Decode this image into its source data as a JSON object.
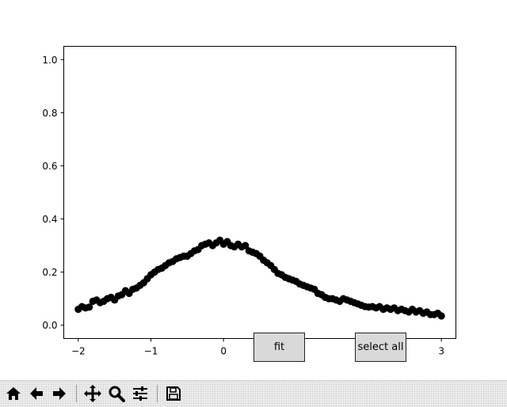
{
  "chart_data": {
    "type": "scatter",
    "title": "",
    "xlabel": "",
    "ylabel": "",
    "xlim": [
      -2.2,
      3.2
    ],
    "ylim": [
      -0.05,
      1.05
    ],
    "xticks": [
      "−2",
      "−1",
      "0",
      "1",
      "2",
      "3"
    ],
    "xtick_values": [
      -2,
      -1,
      0,
      1,
      2,
      3
    ],
    "yticks": [
      "0.0",
      "0.2",
      "0.4",
      "0.6",
      "0.8",
      "1.0"
    ],
    "ytick_values": [
      0.0,
      0.2,
      0.4,
      0.6,
      0.8,
      1.0
    ],
    "marker_color": "#000000",
    "grid": false,
    "x": [
      -2.0,
      -1.95,
      -1.9,
      -1.85,
      -1.8,
      -1.75,
      -1.7,
      -1.65,
      -1.6,
      -1.55,
      -1.5,
      -1.45,
      -1.4,
      -1.35,
      -1.3,
      -1.25,
      -1.2,
      -1.15,
      -1.1,
      -1.05,
      -1.0,
      -0.95,
      -0.9,
      -0.85,
      -0.8,
      -0.75,
      -0.7,
      -0.65,
      -0.6,
      -0.55,
      -0.5,
      -0.45,
      -0.4,
      -0.35,
      -0.3,
      -0.25,
      -0.2,
      -0.15,
      -0.1,
      -0.05,
      0.0,
      0.05,
      0.1,
      0.15,
      0.2,
      0.25,
      0.3,
      0.35,
      0.4,
      0.45,
      0.5,
      0.55,
      0.6,
      0.65,
      0.7,
      0.75,
      0.8,
      0.85,
      0.9,
      0.95,
      1.0,
      1.05,
      1.1,
      1.15,
      1.2,
      1.25,
      1.3,
      1.35,
      1.4,
      1.45,
      1.5,
      1.55,
      1.6,
      1.65,
      1.7,
      1.75,
      1.8,
      1.85,
      1.9,
      1.95,
      2.0,
      2.05,
      2.1,
      2.15,
      2.2,
      2.25,
      2.3,
      2.35,
      2.4,
      2.45,
      2.5,
      2.55,
      2.6,
      2.65,
      2.7,
      2.75,
      2.8,
      2.85,
      2.9,
      2.95,
      3.0
    ],
    "y": [
      0.06,
      0.07,
      0.065,
      0.068,
      0.09,
      0.095,
      0.085,
      0.09,
      0.1,
      0.105,
      0.095,
      0.11,
      0.115,
      0.13,
      0.12,
      0.135,
      0.14,
      0.15,
      0.16,
      0.175,
      0.19,
      0.2,
      0.21,
      0.215,
      0.225,
      0.235,
      0.24,
      0.25,
      0.255,
      0.26,
      0.26,
      0.27,
      0.28,
      0.285,
      0.3,
      0.305,
      0.31,
      0.3,
      0.31,
      0.32,
      0.305,
      0.315,
      0.3,
      0.295,
      0.305,
      0.295,
      0.3,
      0.28,
      0.275,
      0.27,
      0.26,
      0.245,
      0.235,
      0.225,
      0.21,
      0.195,
      0.19,
      0.18,
      0.175,
      0.17,
      0.165,
      0.155,
      0.15,
      0.145,
      0.14,
      0.135,
      0.12,
      0.115,
      0.105,
      0.1,
      0.1,
      0.095,
      0.09,
      0.1,
      0.095,
      0.09,
      0.085,
      0.08,
      0.075,
      0.07,
      0.068,
      0.07,
      0.065,
      0.07,
      0.06,
      0.065,
      0.06,
      0.065,
      0.055,
      0.06,
      0.055,
      0.05,
      0.06,
      0.05,
      0.055,
      0.045,
      0.05,
      0.04,
      0.04,
      0.045,
      0.035
    ]
  },
  "buttons": {
    "fit_label": "fit",
    "select_all_label": "select all"
  },
  "toolbar": {
    "items": [
      "home-icon",
      "back-icon",
      "forward-icon",
      "pan-icon",
      "zoom-icon",
      "configure-subplots-icon",
      "save-icon"
    ]
  }
}
